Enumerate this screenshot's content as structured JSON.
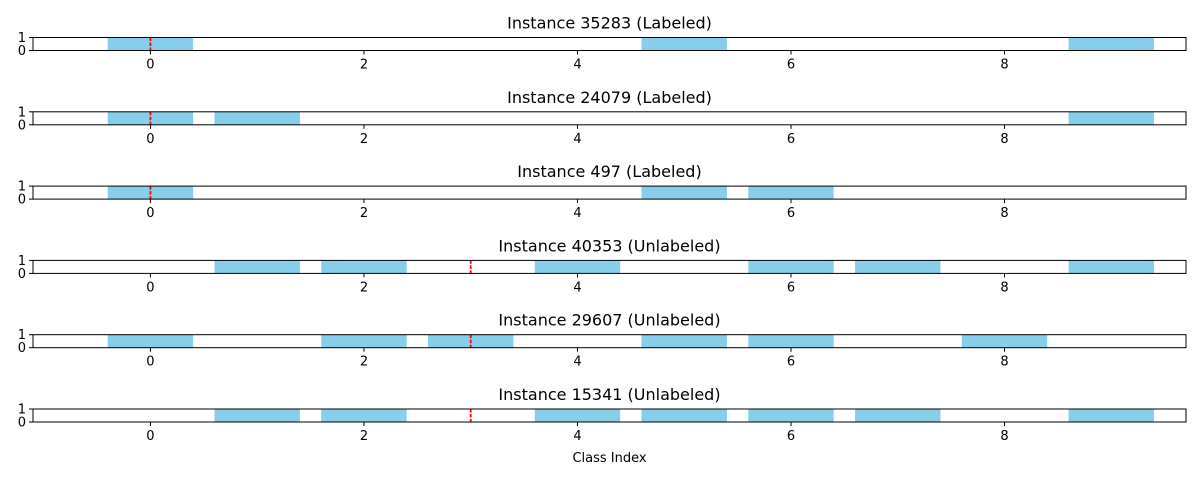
{
  "chart_data": {
    "type": "bar",
    "xlabel": "Class Index",
    "xlim": [
      -1.1,
      9.7
    ],
    "ylim": [
      0,
      1
    ],
    "x_ticks": [
      0,
      2,
      4,
      6,
      8
    ],
    "y_ticks": [
      0,
      1
    ],
    "bar_color": "#87ceeb",
    "marker_color": "#ff0000",
    "categories": [
      0,
      1,
      2,
      3,
      4,
      5,
      6,
      7,
      8,
      9
    ],
    "panels": [
      {
        "title": "Instance 35283 (Labeled)",
        "values": [
          1,
          0,
          0,
          0,
          0,
          1,
          0,
          0,
          0,
          1
        ],
        "marker": 0
      },
      {
        "title": "Instance 24079 (Labeled)",
        "values": [
          1,
          1,
          0,
          0,
          0,
          0,
          0,
          0,
          0,
          1
        ],
        "marker": 0
      },
      {
        "title": "Instance 497 (Labeled)",
        "values": [
          1,
          0,
          0,
          0,
          0,
          1,
          1,
          0,
          0,
          0
        ],
        "marker": 0
      },
      {
        "title": "Instance 40353 (Unlabeled)",
        "values": [
          0,
          1,
          1,
          0,
          1,
          0,
          1,
          1,
          0,
          1
        ],
        "marker": 3
      },
      {
        "title": "Instance 29607 (Unlabeled)",
        "values": [
          1,
          0,
          1,
          1,
          0,
          1,
          1,
          0,
          1,
          0
        ],
        "marker": 3
      },
      {
        "title": "Instance 15341 (Unlabeled)",
        "values": [
          0,
          1,
          1,
          0,
          1,
          1,
          1,
          1,
          0,
          1
        ],
        "marker": 3
      }
    ]
  }
}
